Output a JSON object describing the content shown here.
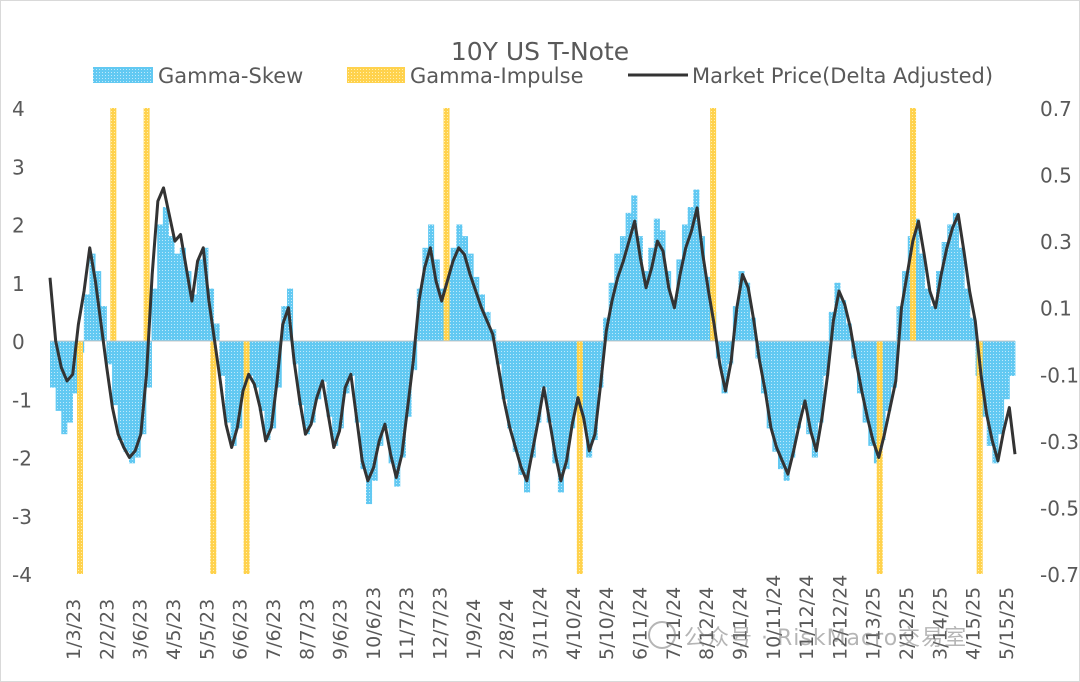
{
  "chart_data": {
    "type": "bar",
    "title": "10Y US T-Note",
    "legend_position": "top",
    "grid": false,
    "x_tick_labels": [
      "1/3/23",
      "2/2/23",
      "3/6/23",
      "4/5/23",
      "5/5/23",
      "6/6/23",
      "7/6/23",
      "8/7/23",
      "9/6/23",
      "10/6/23",
      "11/7/23",
      "12/7/23",
      "1/9/24",
      "2/8/24",
      "3/11/24",
      "4/10/24",
      "5/10/24",
      "6/11/24",
      "7/11/24",
      "8/12/24",
      "9/11/24",
      "10/11/24",
      "11/12/24",
      "12/12/24",
      "1/13/25",
      "2/12/25",
      "3/14/25",
      "4/15/25",
      "5/15/25"
    ],
    "y_left": {
      "lim": [
        -4,
        4
      ],
      "ticks": [
        "4",
        "3",
        "2",
        "1",
        "0",
        "-1",
        "-2",
        "-3",
        "-4"
      ]
    },
    "y_right": {
      "lim": [
        -0.7,
        0.7
      ],
      "ticks": [
        "0.7",
        "0.5",
        "0.3",
        "0.1",
        "-0.1",
        "-0.3",
        "-0.5",
        "-0.7"
      ]
    },
    "series": [
      {
        "name": "Gamma-Skew",
        "type": "bar",
        "axis": "left",
        "color": "#4fc3ef",
        "values": [
          -0.8,
          -1.2,
          -1.6,
          -1.4,
          -0.9,
          -0.2,
          0.8,
          1.5,
          1.2,
          0.6,
          -0.4,
          -1.1,
          -1.7,
          -1.9,
          -2.1,
          -2.0,
          -1.6,
          -0.8,
          0.9,
          2.0,
          2.3,
          1.8,
          1.5,
          1.6,
          1.2,
          0.8,
          1.4,
          1.6,
          0.9,
          0.3,
          -0.6,
          -1.4,
          -1.8,
          -1.5,
          -0.9,
          -0.6,
          -0.8,
          -1.2,
          -1.7,
          -1.5,
          -0.8,
          0.6,
          0.9,
          -0.4,
          -1.1,
          -1.6,
          -1.4,
          -1.0,
          -0.7,
          -1.3,
          -1.8,
          -1.5,
          -0.9,
          -0.6,
          -1.4,
          -2.2,
          -2.8,
          -2.4,
          -1.8,
          -1.5,
          -2.1,
          -2.5,
          -2.0,
          -1.3,
          -0.5,
          0.9,
          1.6,
          2.0,
          1.4,
          0.9,
          1.3,
          1.6,
          2.0,
          1.8,
          1.5,
          1.1,
          0.8,
          0.5,
          0.2,
          -0.4,
          -1.0,
          -1.5,
          -1.9,
          -2.3,
          -2.6,
          -2.0,
          -1.4,
          -0.8,
          -1.4,
          -2.1,
          -2.6,
          -2.2,
          -1.5,
          -1.0,
          -1.4,
          -2.0,
          -1.7,
          -0.8,
          0.4,
          1.0,
          1.5,
          1.8,
          2.2,
          2.5,
          1.8,
          1.2,
          1.6,
          2.1,
          1.9,
          1.2,
          0.7,
          1.4,
          2.0,
          2.3,
          2.6,
          1.8,
          1.1,
          0.5,
          -0.3,
          -0.9,
          -0.4,
          0.6,
          1.2,
          1.0,
          0.4,
          -0.3,
          -0.9,
          -1.5,
          -1.9,
          -2.2,
          -2.4,
          -2.0,
          -1.5,
          -1.1,
          -1.6,
          -2.0,
          -1.4,
          -0.6,
          0.5,
          1.0,
          0.7,
          0.3,
          -0.3,
          -0.9,
          -1.4,
          -1.8,
          -2.1,
          -1.7,
          -1.2,
          -0.8,
          0.6,
          1.2,
          1.8,
          2.1,
          1.5,
          0.9,
          0.6,
          1.2,
          1.7,
          2.0,
          2.2,
          1.6,
          0.9,
          0.4,
          -0.6,
          -1.3,
          -1.8,
          -2.1,
          -1.6,
          -1.0,
          -0.6
        ]
      },
      {
        "name": "Gamma-Impulse",
        "type": "bar",
        "axis": "left",
        "color": "#ffd966",
        "events": [
          {
            "x": "1/3/23",
            "value": -4.0
          },
          {
            "x": "2/2/23",
            "value": 4.0
          },
          {
            "x": "3/6/23",
            "value": 4.0
          },
          {
            "x": "5/5/23",
            "value": -4.0
          },
          {
            "x": "6/6/23",
            "value": -4.0
          },
          {
            "x": "12/7/23",
            "value": 4.0
          },
          {
            "x": "4/10/24",
            "value": -4.0
          },
          {
            "x": "8/12/24",
            "value": 4.0
          },
          {
            "x": "1/13/25",
            "value": -4.0
          },
          {
            "x": "2/12/25",
            "value": 4.0
          },
          {
            "x": "4/15/25",
            "value": -4.0
          }
        ]
      },
      {
        "name": "Market Price(Delta Adjusted)",
        "type": "line",
        "axis": "right",
        "color": "#333333",
        "values": [
          0.19,
          0.0,
          -0.08,
          -0.12,
          -0.1,
          0.05,
          0.15,
          0.28,
          0.18,
          0.05,
          -0.08,
          -0.2,
          -0.28,
          -0.32,
          -0.35,
          -0.33,
          -0.28,
          -0.1,
          0.2,
          0.42,
          0.46,
          0.38,
          0.3,
          0.32,
          0.22,
          0.12,
          0.24,
          0.28,
          0.12,
          0.0,
          -0.12,
          -0.25,
          -0.32,
          -0.26,
          -0.15,
          -0.1,
          -0.13,
          -0.2,
          -0.3,
          -0.26,
          -0.12,
          0.05,
          0.1,
          -0.06,
          -0.18,
          -0.28,
          -0.25,
          -0.17,
          -0.12,
          -0.22,
          -0.32,
          -0.27,
          -0.14,
          -0.1,
          -0.23,
          -0.36,
          -0.42,
          -0.38,
          -0.3,
          -0.25,
          -0.34,
          -0.41,
          -0.34,
          -0.2,
          -0.06,
          0.12,
          0.22,
          0.28,
          0.18,
          0.12,
          0.18,
          0.24,
          0.28,
          0.26,
          0.2,
          0.15,
          0.1,
          0.06,
          0.02,
          -0.08,
          -0.18,
          -0.26,
          -0.32,
          -0.38,
          -0.42,
          -0.33,
          -0.24,
          -0.14,
          -0.24,
          -0.34,
          -0.42,
          -0.36,
          -0.25,
          -0.17,
          -0.23,
          -0.33,
          -0.28,
          -0.13,
          0.03,
          0.12,
          0.19,
          0.24,
          0.3,
          0.36,
          0.25,
          0.16,
          0.22,
          0.3,
          0.27,
          0.16,
          0.1,
          0.2,
          0.28,
          0.33,
          0.4,
          0.26,
          0.15,
          0.05,
          -0.07,
          -0.15,
          -0.06,
          0.1,
          0.2,
          0.16,
          0.06,
          -0.06,
          -0.15,
          -0.26,
          -0.32,
          -0.36,
          -0.4,
          -0.33,
          -0.25,
          -0.18,
          -0.27,
          -0.33,
          -0.23,
          -0.1,
          0.06,
          0.15,
          0.11,
          0.04,
          -0.06,
          -0.15,
          -0.23,
          -0.3,
          -0.35,
          -0.28,
          -0.2,
          -0.12,
          0.1,
          0.2,
          0.3,
          0.36,
          0.26,
          0.15,
          0.1,
          0.2,
          0.28,
          0.34,
          0.38,
          0.27,
          0.15,
          0.06,
          -0.1,
          -0.22,
          -0.3,
          -0.36,
          -0.27,
          -0.2,
          -0.34
        ]
      }
    ]
  },
  "watermark": {
    "text": "公众号 · RiskMacro交易室"
  }
}
